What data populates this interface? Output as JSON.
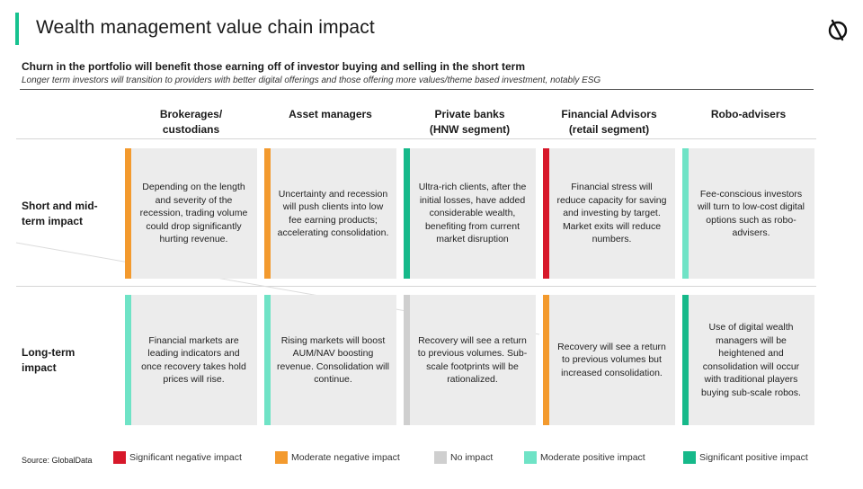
{
  "header": {
    "title": "Wealth management value chain impact",
    "logo_icon": "globaldata-logo-icon"
  },
  "subtitle": "Churn in the portfolio will benefit those earning off of investor buying and selling in the short term",
  "subtitle_italic": "Longer term investors will transition to providers with better digital offerings and those offering more values/theme based investment, notably ESG",
  "columns": [
    {
      "line1": "Brokerages/",
      "line2": "custodians"
    },
    {
      "line1": "Asset managers",
      "line2": ""
    },
    {
      "line1": "Private banks",
      "line2": "(HNW segment)"
    },
    {
      "line1": "Financial Advisors",
      "line2": "(retail segment)"
    },
    {
      "line1": "Robo-advisers",
      "line2": ""
    }
  ],
  "rows": [
    {
      "label1": "Short and mid-",
      "label2": "term impact",
      "cells": [
        {
          "text": "Depending on the length and severity of the recession, trading volume could drop significantly hurting revenue.",
          "impact": "moderate_negative"
        },
        {
          "text": "Uncertainty and recession will push clients into low fee earning products; accelerating consolidation.",
          "impact": "moderate_negative"
        },
        {
          "text": "Ultra-rich clients, after the initial losses, have added considerable wealth, benefiting from current market disruption",
          "impact": "significant_positive"
        },
        {
          "text": "Financial stress will reduce capacity for saving and investing by target. Market exits will reduce numbers.",
          "impact": "significant_negative"
        },
        {
          "text": "Fee-conscious investors will turn to low-cost digital options such as robo-advisers.",
          "impact": "moderate_positive"
        }
      ]
    },
    {
      "label1": "Long-term",
      "label2": "impact",
      "cells": [
        {
          "text": "Financial markets are leading indicators and once recovery takes hold prices will rise.",
          "impact": "moderate_positive"
        },
        {
          "text": "Rising markets will boost AUM/NAV boosting revenue. Consolidation will continue.",
          "impact": "moderate_positive"
        },
        {
          "text": "Recovery will see a return to previous volumes. Sub-scale footprints will be rationalized.",
          "impact": "no_impact"
        },
        {
          "text": "Recovery will see a return to previous volumes but increased consolidation.",
          "impact": "moderate_negative"
        },
        {
          "text": "Use of digital wealth managers will be heightened and consolidation will occur with traditional players buying sub-scale robos.",
          "impact": "significant_positive"
        }
      ]
    }
  ],
  "colors": {
    "significant_negative": "#d7182a",
    "moderate_negative": "#f39a2e",
    "no_impact": "#cfcfcf",
    "moderate_positive": "#6fe3c6",
    "significant_positive": "#16b98a",
    "accent": "#17c28f"
  },
  "legend": {
    "source": "Source: GlobalData",
    "items": [
      {
        "key": "significant_negative",
        "label": "Significant negative impact"
      },
      {
        "key": "moderate_negative",
        "label": "Moderate negative impact"
      },
      {
        "key": "no_impact",
        "label": "No impact"
      },
      {
        "key": "moderate_positive",
        "label": "Moderate positive impact"
      },
      {
        "key": "significant_positive",
        "label": "Significant positive impact"
      }
    ]
  }
}
